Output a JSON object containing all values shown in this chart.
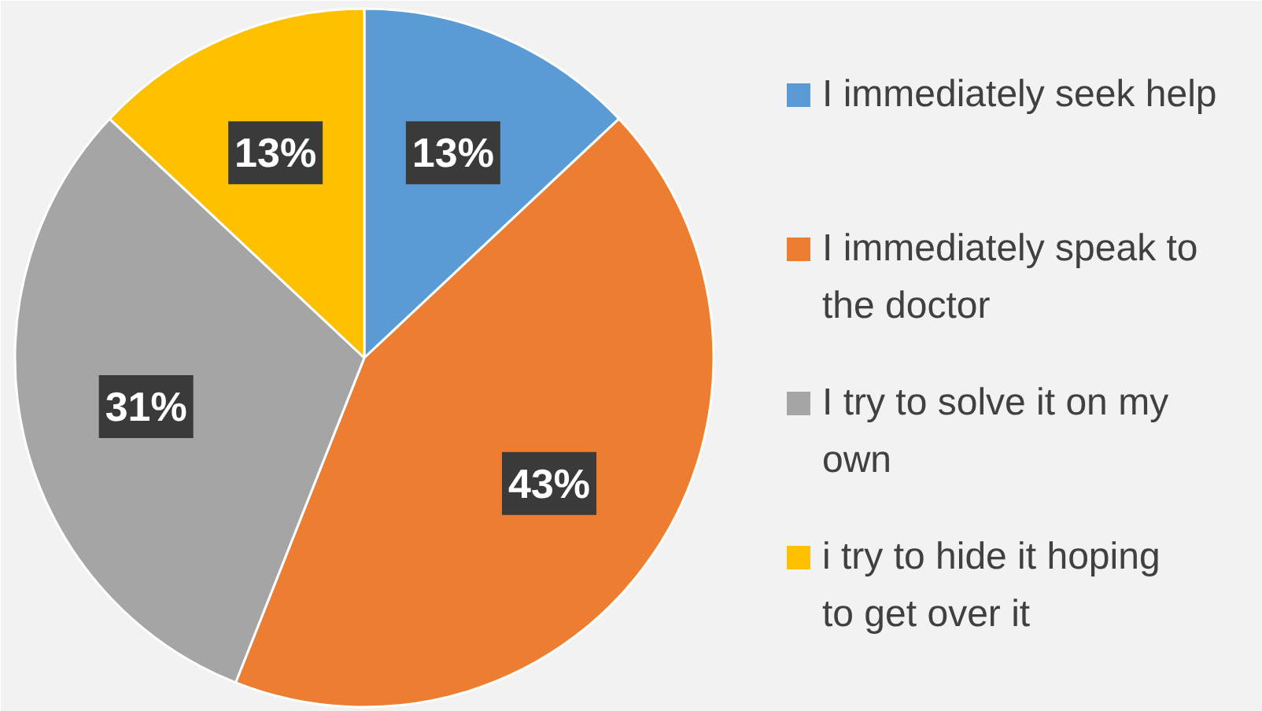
{
  "chart_data": {
    "type": "pie",
    "categories": [
      "I immediately seek help",
      "I immediately speak to the doctor",
      "I try to solve it on my own",
      "i try to hide it hoping to get over it"
    ],
    "values": [
      13,
      43,
      31,
      13
    ],
    "colors": [
      "#5b9bd5",
      "#ed7d31",
      "#a5a5a5",
      "#ffc000"
    ],
    "value_labels": [
      "13%",
      "43%",
      "31%",
      "13%"
    ],
    "legend": "right"
  }
}
